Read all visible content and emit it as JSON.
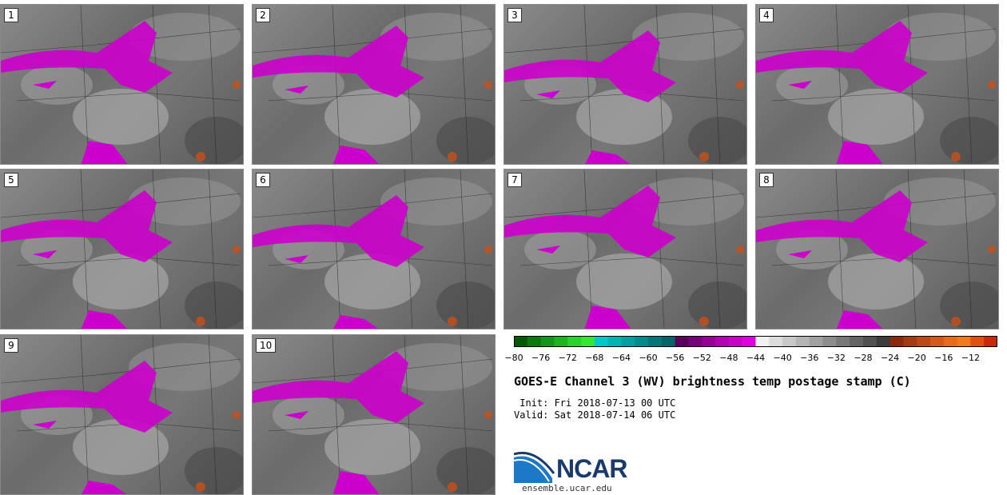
{
  "panels": [
    {
      "label": "1"
    },
    {
      "label": "2"
    },
    {
      "label": "3"
    },
    {
      "label": "4"
    },
    {
      "label": "5"
    },
    {
      "label": "6"
    },
    {
      "label": "7"
    },
    {
      "label": "8"
    },
    {
      "label": "9"
    },
    {
      "label": "10"
    }
  ],
  "colorbar": {
    "ticks": [
      "−80",
      "−76",
      "−72",
      "−68",
      "−64",
      "−60",
      "−56",
      "−52",
      "−48",
      "−44",
      "−40",
      "−36",
      "−32",
      "−28",
      "−24",
      "−20",
      "−16",
      "−12"
    ],
    "colors": [
      "#005a00",
      "#0a7a0a",
      "#14961a",
      "#1eb41e",
      "#28d228",
      "#32e832",
      "#00c8c8",
      "#00b4b4",
      "#00a0a0",
      "#008c8c",
      "#007878",
      "#006464",
      "#5a005a",
      "#780078",
      "#960096",
      "#b400b4",
      "#c800c8",
      "#e100e1",
      "#f0f0f0",
      "#dcdcdc",
      "#c8c8c8",
      "#b4b4b4",
      "#a0a0a0",
      "#8c8c8c",
      "#787878",
      "#646464",
      "#505050",
      "#3c3c3c",
      "#8b2a0a",
      "#a33a10",
      "#bb4a14",
      "#d35a18",
      "#e86a1a",
      "#f07a1c",
      "#e05010",
      "#c82a08"
    ]
  },
  "title": "GOES-E Channel 3 (WV) brightness temp postage stamp (C)",
  "init_line": " Init: Fri 2018-07-13 00 UTC",
  "valid_line": "Valid: Sat 2018-07-14 06 UTC",
  "logo": {
    "text": "NCAR",
    "url": "ensemble.ucar.edu"
  }
}
